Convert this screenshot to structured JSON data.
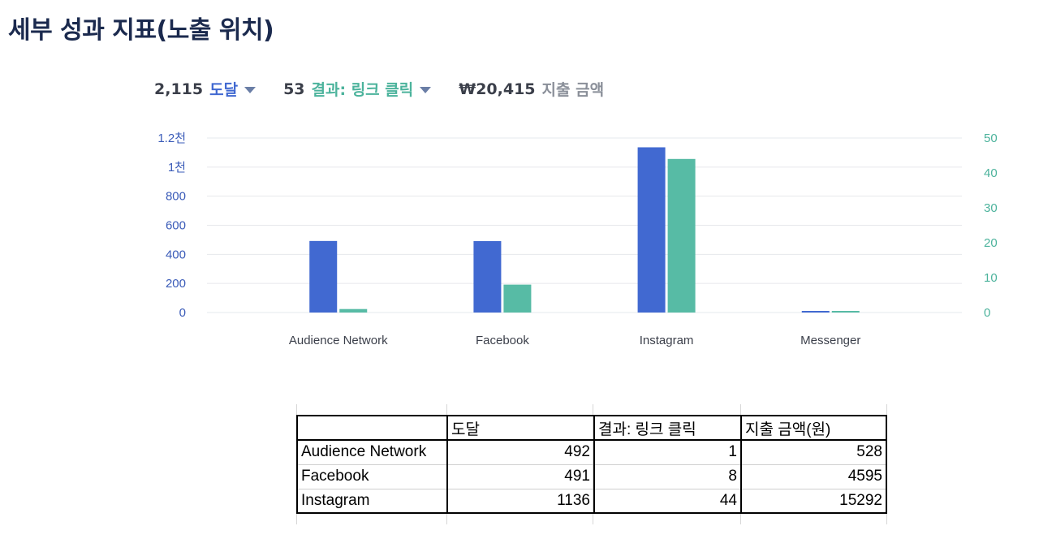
{
  "page_title": "세부 성과 지표(노출 위치)",
  "metrics": {
    "reach": {
      "value": "2,115",
      "label": "도달",
      "color": "#4169d1"
    },
    "result": {
      "value": "53",
      "label": "결과: 링크 클릭",
      "color": "#4cb39c"
    },
    "spend": {
      "value": "₩20,415",
      "label": "지출 금액"
    }
  },
  "chart_data": {
    "type": "bar",
    "categories": [
      "Audience Network",
      "Facebook",
      "Instagram",
      "Messenger"
    ],
    "series": [
      {
        "name": "도달",
        "axis": "left",
        "color": "#4169d1",
        "values": [
          492,
          491,
          1136,
          6
        ]
      },
      {
        "name": "결과: 링크 클릭",
        "axis": "right",
        "color": "#57bba5",
        "values": [
          1,
          8,
          44,
          0.25
        ]
      }
    ],
    "y_left": {
      "ticks": [
        0,
        200,
        400,
        600,
        800,
        1000,
        1200
      ],
      "tick_labels": [
        "0",
        "200",
        "400",
        "600",
        "800",
        "1천",
        "1.2천"
      ],
      "ylim": [
        0,
        1200
      ]
    },
    "y_right": {
      "ticks": [
        0,
        10,
        20,
        30,
        40,
        50
      ],
      "tick_labels": [
        "0",
        "10",
        "20",
        "30",
        "40",
        "50"
      ],
      "ylim": [
        0,
        50
      ]
    },
    "grid": true
  },
  "table": {
    "headers": [
      "",
      "도달",
      "결과: 링크 클릭",
      "지출 금액(원)"
    ],
    "rows": [
      [
        "Audience Network",
        "492",
        "1",
        "528"
      ],
      [
        "Facebook",
        "491",
        "8",
        "4595"
      ],
      [
        "Instagram",
        "1136",
        "44",
        "15292"
      ]
    ]
  }
}
